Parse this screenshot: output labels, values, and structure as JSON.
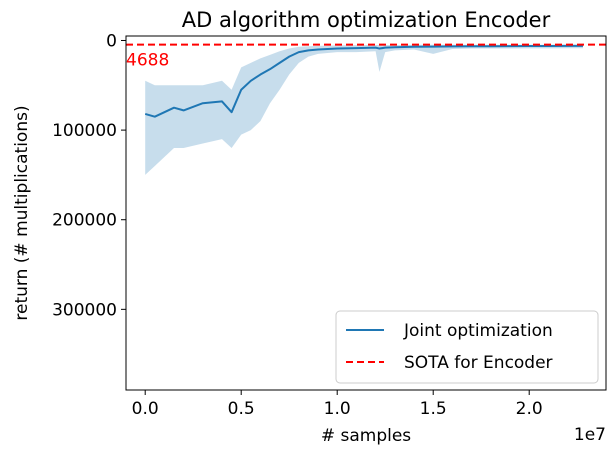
{
  "chart_data": {
    "type": "line",
    "title": "AD algorithm optimization Encoder",
    "xlabel": "# samples",
    "ylabel": "return (# multiplications)",
    "x_offset_label": "1e7",
    "x_multiplier": 10000000,
    "xlim": [
      -0.1,
      2.4
    ],
    "ylim": [
      390000,
      -5000
    ],
    "y_inverted": true,
    "x_ticks": [
      0.0,
      0.5,
      1.0,
      1.5,
      2.0
    ],
    "x_tick_labels": [
      "0.0",
      "0.5",
      "1.0",
      "1.5",
      "2.0"
    ],
    "y_ticks": [
      0,
      100000,
      200000,
      300000
    ],
    "y_tick_labels": [
      "0",
      "100000",
      "200000",
      "300000"
    ],
    "grid": false,
    "legend_position": "lower-right",
    "series": [
      {
        "name": "Joint optimization",
        "style": "solid",
        "color": "#1f77b4",
        "x": [
          0.0,
          0.05,
          0.1,
          0.15,
          0.2,
          0.3,
          0.4,
          0.45,
          0.5,
          0.55,
          0.6,
          0.65,
          0.7,
          0.75,
          0.8,
          0.85,
          0.9,
          1.0,
          1.1,
          1.2,
          1.22,
          1.25,
          1.3,
          1.4,
          1.5,
          1.6,
          1.7,
          1.8,
          1.9,
          2.0,
          2.1,
          2.2,
          2.28
        ],
        "y": [
          82000,
          85000,
          80000,
          75000,
          78000,
          70000,
          68000,
          80000,
          55000,
          45000,
          38000,
          32000,
          25000,
          18000,
          13000,
          11000,
          10000,
          9000,
          8500,
          8000,
          9000,
          8000,
          7500,
          7000,
          6800,
          6600,
          6500,
          6400,
          6300,
          6200,
          6100,
          6000,
          6000
        ],
        "band_lower": [
          45000,
          50000,
          50000,
          50000,
          50000,
          50000,
          45000,
          55000,
          30000,
          25000,
          20000,
          16000,
          12000,
          9000,
          7000,
          6500,
          6000,
          5500,
          5200,
          5000,
          5000,
          5000,
          5000,
          4900,
          4800,
          4800,
          4800,
          4700,
          4700,
          4700,
          4700,
          4600,
          4600
        ],
        "band_upper": [
          150000,
          140000,
          130000,
          120000,
          120000,
          115000,
          110000,
          120000,
          105000,
          100000,
          90000,
          70000,
          55000,
          38000,
          25000,
          18000,
          15000,
          13000,
          13000,
          12000,
          35000,
          13000,
          11000,
          10000,
          15000,
          9500,
          9000,
          9000,
          9000,
          8800,
          8800,
          8600,
          8600
        ]
      },
      {
        "name": "SOTA for Encoder",
        "style": "dashed",
        "color": "#ff0000",
        "y_constant": 4688
      }
    ],
    "annotations": [
      {
        "text": "4688",
        "color": "#ff0000"
      }
    ]
  }
}
